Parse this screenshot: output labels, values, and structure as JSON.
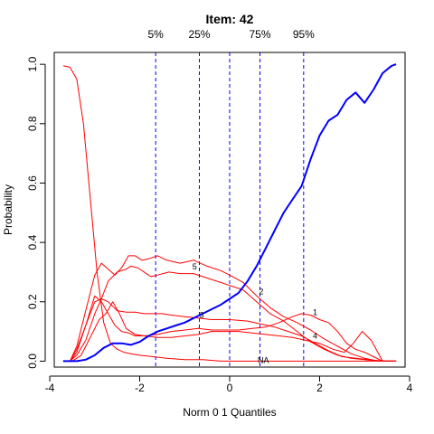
{
  "chart_data": {
    "type": "line",
    "title": "Item:  42",
    "xlabel": "Norm 0 1 Quantiles",
    "ylabel": "Probability",
    "xlim": [
      -3.9,
      3.9
    ],
    "ylim": [
      -0.02,
      1.04
    ],
    "xticks": [
      -4,
      -2,
      0,
      2,
      4
    ],
    "yticks": [
      0.0,
      0.2,
      0.4,
      0.6,
      0.8,
      1.0
    ],
    "xtick_labels": [
      "-4",
      "-2",
      "0",
      "2",
      "4"
    ],
    "ytick_labels": [
      "0.0",
      "0.2",
      "0.4",
      "0.6",
      "0.8",
      "1.0"
    ],
    "grid": false,
    "quantile_lines": [
      {
        "label": "5%",
        "x": -1.645
      },
      {
        "label": "25%",
        "x": -0.674
      },
      {
        "label": "",
        "x": 0.0
      },
      {
        "label": "75%",
        "x": 0.674
      },
      {
        "label": "95%",
        "x": 1.645
      }
    ],
    "quantile_line_color": "#0000ff",
    "series": [
      {
        "name": "3",
        "color": "#ff0000",
        "width": 1,
        "label_x": -0.62,
        "label_y": 0.155,
        "x": [
          -3.7,
          -3.55,
          -3.4,
          -3.2,
          -3.0,
          -2.85,
          -2.7,
          -2.5,
          -2.3,
          -2.1,
          -1.9,
          -1.7,
          -1.5,
          -1.3,
          -1.0,
          -0.7,
          -0.4,
          0.0,
          0.4,
          0.7,
          1.0,
          1.3,
          1.6,
          1.9,
          2.2,
          2.5,
          2.8,
          3.1,
          3.4,
          3.7
        ],
        "y": [
          0.0,
          0.0,
          0.02,
          0.07,
          0.16,
          0.21,
          0.2,
          0.17,
          0.165,
          0.165,
          0.16,
          0.16,
          0.16,
          0.155,
          0.15,
          0.145,
          0.14,
          0.14,
          0.135,
          0.125,
          0.115,
          0.1,
          0.085,
          0.06,
          0.035,
          0.015,
          0.01,
          0.005,
          0.0,
          0.0
        ]
      },
      {
        "name": "5",
        "color": "#ff0000",
        "width": 1,
        "label_x": -0.78,
        "label_y": 0.318,
        "x": [
          -3.7,
          -3.55,
          -3.4,
          -3.2,
          -3.0,
          -2.85,
          -2.7,
          -2.5,
          -2.3,
          -2.2,
          -2.05,
          -1.9,
          -1.75,
          -1.6,
          -1.35,
          -1.1,
          -0.8,
          -0.5,
          -0.2,
          0.0,
          0.3,
          0.6,
          0.9,
          1.2,
          1.5,
          1.8,
          2.1,
          2.4,
          2.7,
          3.0,
          3.3,
          3.5,
          3.7
        ],
        "y": [
          0.0,
          0.0,
          0.04,
          0.12,
          0.2,
          0.21,
          0.27,
          0.3,
          0.31,
          0.32,
          0.315,
          0.3,
          0.285,
          0.29,
          0.3,
          0.295,
          0.295,
          0.28,
          0.265,
          0.255,
          0.24,
          0.2,
          0.16,
          0.135,
          0.1,
          0.065,
          0.04,
          0.02,
          0.01,
          0.005,
          0.0,
          0.0,
          0.0
        ]
      },
      {
        "name": "2",
        "color": "#ff0000",
        "width": 1,
        "label_x": 0.7,
        "label_y": 0.235,
        "x": [
          -3.7,
          -3.55,
          -3.4,
          -3.2,
          -3.0,
          -2.85,
          -2.7,
          -2.55,
          -2.4,
          -2.25,
          -2.1,
          -1.95,
          -1.8,
          -1.6,
          -1.4,
          -1.1,
          -0.8,
          -0.5,
          -0.2,
          0.0,
          0.3,
          0.6,
          0.9,
          1.2,
          1.5,
          1.8,
          2.1,
          2.4,
          2.7,
          3.0,
          3.3,
          3.5,
          3.7
        ],
        "y": [
          0.0,
          0.0,
          0.05,
          0.17,
          0.29,
          0.33,
          0.31,
          0.29,
          0.315,
          0.355,
          0.355,
          0.34,
          0.345,
          0.355,
          0.34,
          0.33,
          0.34,
          0.32,
          0.305,
          0.29,
          0.265,
          0.22,
          0.18,
          0.15,
          0.13,
          0.105,
          0.075,
          0.05,
          0.025,
          0.01,
          0.0,
          0.0,
          0.0
        ]
      },
      {
        "name": "1",
        "color": "#ff0000",
        "width": 1,
        "label_x": 1.9,
        "label_y": 0.165,
        "x": [
          -3.7,
          -3.55,
          -3.4,
          -3.2,
          -3.0,
          -2.85,
          -2.7,
          -2.55,
          -2.4,
          -2.25,
          -2.1,
          -1.9,
          -1.6,
          -1.3,
          -1.0,
          -0.7,
          -0.4,
          -0.1,
          0.2,
          0.5,
          0.8,
          1.1,
          1.4,
          1.6,
          1.8,
          2.0,
          2.2,
          2.4,
          2.6,
          2.8,
          3.0,
          3.2,
          3.4,
          3.7
        ],
        "y": [
          0.0,
          0.0,
          0.03,
          0.12,
          0.22,
          0.2,
          0.16,
          0.12,
          0.1,
          0.095,
          0.085,
          0.085,
          0.09,
          0.1,
          0.105,
          0.11,
          0.105,
          0.105,
          0.105,
          0.11,
          0.115,
          0.13,
          0.15,
          0.16,
          0.155,
          0.14,
          0.13,
          0.1,
          0.06,
          0.04,
          0.03,
          0.015,
          0.0,
          0.0
        ]
      },
      {
        "name": "4",
        "color": "#ff0000",
        "width": 1,
        "label_x": 1.9,
        "label_y": 0.085,
        "x": [
          -3.7,
          -3.5,
          -3.3,
          -3.1,
          -2.9,
          -2.75,
          -2.6,
          -2.45,
          -2.3,
          -2.1,
          -1.9,
          -1.6,
          -1.3,
          -1.0,
          -0.7,
          -0.4,
          -0.1,
          0.2,
          0.5,
          0.8,
          1.1,
          1.4,
          1.7,
          2.0,
          2.3,
          2.55,
          2.75,
          2.95,
          3.15,
          3.4,
          3.7
        ],
        "y": [
          0.0,
          0.0,
          0.02,
          0.08,
          0.14,
          0.16,
          0.2,
          0.16,
          0.11,
          0.09,
          0.085,
          0.08,
          0.08,
          0.085,
          0.09,
          0.1,
          0.1,
          0.1,
          0.095,
          0.09,
          0.085,
          0.08,
          0.07,
          0.06,
          0.04,
          0.03,
          0.06,
          0.1,
          0.07,
          0.0,
          0.0
        ]
      },
      {
        "name": "NA",
        "color": "#ff0000",
        "width": 1,
        "label_x": 0.75,
        "label_y": 0.003,
        "x": [
          -3.7,
          -3.55,
          -3.4,
          -3.25,
          -3.1,
          -2.95,
          -2.8,
          -2.65,
          -2.5,
          -2.35,
          -2.2,
          -2.0,
          -1.7,
          -1.4,
          -1.0,
          -0.6,
          -0.2,
          0.2,
          0.6,
          1.0,
          1.5,
          2.0,
          2.5,
          3.0,
          3.7
        ],
        "y": [
          0.995,
          0.99,
          0.95,
          0.8,
          0.55,
          0.3,
          0.13,
          0.06,
          0.04,
          0.03,
          0.025,
          0.02,
          0.015,
          0.01,
          0.005,
          0.005,
          0.0,
          0.0,
          0.0,
          0.0,
          0.0,
          0.0,
          0.0,
          0.0,
          0.0
        ]
      },
      {
        "name": "",
        "color": "#0000ff",
        "width": 2,
        "label_x": null,
        "label_y": null,
        "x": [
          -3.7,
          -3.4,
          -3.2,
          -3.0,
          -2.8,
          -2.6,
          -2.4,
          -2.2,
          -2.0,
          -1.8,
          -1.6,
          -1.4,
          -1.2,
          -1.0,
          -0.8,
          -0.6,
          -0.4,
          -0.2,
          0.0,
          0.2,
          0.4,
          0.6,
          0.8,
          1.0,
          1.2,
          1.4,
          1.6,
          1.8,
          2.0,
          2.2,
          2.4,
          2.6,
          2.8,
          3.0,
          3.2,
          3.4,
          3.6,
          3.7
        ],
        "y": [
          0.0,
          0.0,
          0.005,
          0.02,
          0.045,
          0.06,
          0.06,
          0.055,
          0.065,
          0.085,
          0.1,
          0.11,
          0.12,
          0.13,
          0.145,
          0.16,
          0.175,
          0.19,
          0.21,
          0.23,
          0.27,
          0.32,
          0.38,
          0.44,
          0.5,
          0.545,
          0.59,
          0.68,
          0.76,
          0.81,
          0.83,
          0.88,
          0.905,
          0.87,
          0.915,
          0.97,
          0.995,
          1.0
        ]
      }
    ]
  }
}
